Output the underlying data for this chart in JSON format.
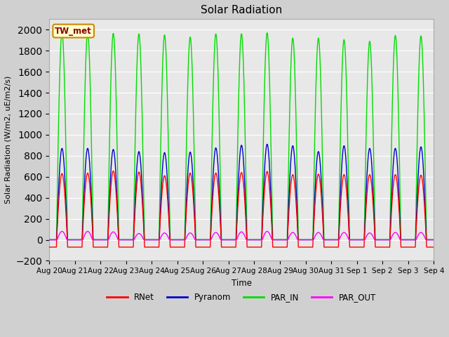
{
  "title": "Solar Radiation",
  "ylabel": "Solar Radiation (W/m2, uE/m2/s)",
  "xlabel": "Time",
  "ylim": [
    -200,
    2100
  ],
  "yticks": [
    -200,
    0,
    200,
    400,
    600,
    800,
    1000,
    1200,
    1400,
    1600,
    1800,
    2000
  ],
  "num_days": 15,
  "day_labels": [
    "Aug 20",
    "Aug 21",
    "Aug 22",
    "Aug 23",
    "Aug 24",
    "Aug 25",
    "Aug 26",
    "Aug 27",
    "Aug 28",
    "Aug 29",
    "Aug 30",
    "Aug 31",
    "Sep 1",
    "Sep 2",
    "Sep 3",
    "Sep 4"
  ],
  "colors": {
    "RNet": "#ff0000",
    "Pyranom": "#0000cc",
    "PAR_IN": "#00dd00",
    "PAR_OUT": "#ff00ff"
  },
  "fig_bg_color": "#d0d0d0",
  "plot_bg_color": "#e8e8e8",
  "grid_color": "#ffffff",
  "legend_box": {
    "label": "TW_met",
    "facecolor": "#ffffcc",
    "edgecolor": "#cc8800",
    "text_color": "#8b0000"
  },
  "rnet_peaks": [
    630,
    635,
    655,
    645,
    610,
    635,
    635,
    640,
    650,
    620,
    625,
    620,
    620,
    620,
    615
  ],
  "pyranom_peaks": [
    870,
    870,
    860,
    840,
    830,
    835,
    875,
    900,
    910,
    895,
    840,
    895,
    870,
    870,
    885
  ],
  "par_in_peaks": [
    1975,
    1975,
    1965,
    1960,
    1950,
    1930,
    1960,
    1960,
    1970,
    1920,
    1920,
    1905,
    1890,
    1945,
    1940
  ],
  "par_out_peaks": [
    80,
    80,
    75,
    60,
    65,
    65,
    70,
    75,
    80,
    70,
    70,
    70,
    65,
    70,
    70
  ],
  "rnet_night": -70,
  "rise": 0.29,
  "set_": 0.71,
  "line_width": 1.0
}
